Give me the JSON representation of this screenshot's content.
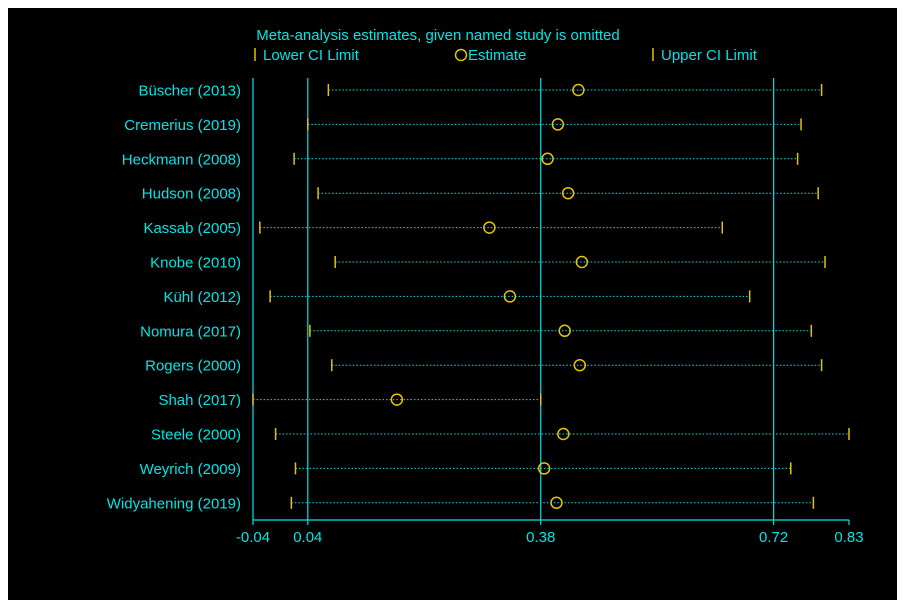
{
  "colors": {
    "background": "#000000",
    "text": "#00e5e5",
    "ci_marker": "#e6c200",
    "estimate_marker": "#e6c200",
    "ci_line": "#00e5e5",
    "reference_line": "#00e5e5"
  },
  "chart_data": {
    "type": "scatter",
    "title": "Meta-analysis estimates, given named study is omitted",
    "legend": {
      "placement": "top",
      "entries": [
        {
          "name": "Lower CI Limit",
          "marker": "tick"
        },
        {
          "name": "Estimate",
          "marker": "circle"
        },
        {
          "name": "Upper CI Limit",
          "marker": "tick"
        }
      ]
    },
    "xlim": [
      -0.04,
      0.83
    ],
    "xticks": [
      -0.04,
      0.04,
      0.38,
      0.72,
      0.83
    ],
    "xtick_labels": [
      "-0.04",
      "0.04",
      "0.38",
      "0.72",
      "0.83"
    ],
    "reference_lines": [
      -0.04,
      0.04,
      0.38,
      0.72
    ],
    "grid": false,
    "studies": [
      {
        "name": "Büscher (2013)",
        "lower": 0.07,
        "estimate": 0.435,
        "upper": 0.79
      },
      {
        "name": "Cremerius (2019)",
        "lower": 0.04,
        "estimate": 0.405,
        "upper": 0.76
      },
      {
        "name": "Heckmann (2008)",
        "lower": 0.02,
        "estimate": 0.39,
        "upper": 0.755
      },
      {
        "name": "Hudson (2008)",
        "lower": 0.055,
        "estimate": 0.42,
        "upper": 0.785
      },
      {
        "name": "Kassab (2005)",
        "lower": -0.03,
        "estimate": 0.305,
        "upper": 0.645
      },
      {
        "name": "Knobe (2010)",
        "lower": 0.08,
        "estimate": 0.44,
        "upper": 0.795
      },
      {
        "name": "Kühl (2012)",
        "lower": -0.015,
        "estimate": 0.335,
        "upper": 0.685
      },
      {
        "name": "Nomura (2017)",
        "lower": 0.043,
        "estimate": 0.415,
        "upper": 0.775
      },
      {
        "name": "Rogers (2000)",
        "lower": 0.075,
        "estimate": 0.437,
        "upper": 0.79
      },
      {
        "name": "Shah (2017)",
        "lower": -0.04,
        "estimate": 0.17,
        "upper": 0.38
      },
      {
        "name": "Steele (2000)",
        "lower": -0.007,
        "estimate": 0.413,
        "upper": 0.83
      },
      {
        "name": "Weyrich (2009)",
        "lower": 0.022,
        "estimate": 0.385,
        "upper": 0.745
      },
      {
        "name": "Widyahening (2019)",
        "lower": 0.016,
        "estimate": 0.403,
        "upper": 0.778
      }
    ]
  }
}
